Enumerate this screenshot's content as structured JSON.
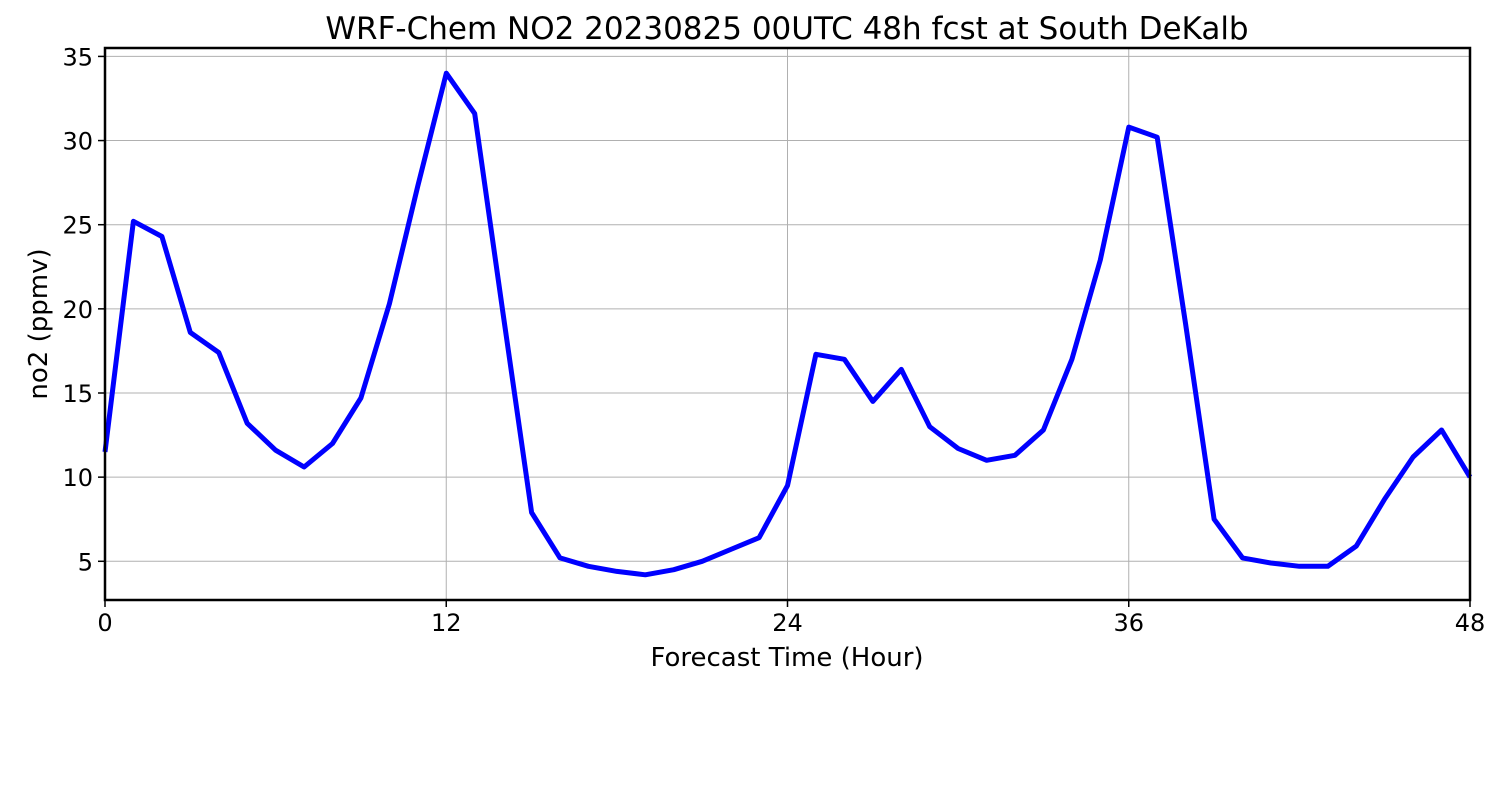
{
  "chart_data": {
    "type": "line",
    "title": "WRF-Chem NO2  20230825 00UTC 48h fcst at South DeKalb",
    "xlabel": "Forecast Time (Hour)",
    "ylabel": "no2  (ppmv)",
    "xlim": [
      0,
      48
    ],
    "ylim": [
      2.7,
      35.5
    ],
    "xticks": [
      0,
      12,
      24,
      36,
      48
    ],
    "yticks": [
      5,
      10,
      15,
      20,
      25,
      30,
      35
    ],
    "grid": true,
    "legend": "none",
    "series": [
      {
        "color": "#0000ff",
        "x": [
          0,
          1,
          2,
          3,
          4,
          5,
          6,
          7,
          8,
          9,
          10,
          11,
          12,
          13,
          14,
          15,
          16,
          17,
          18,
          19,
          20,
          21,
          22,
          23,
          24,
          25,
          26,
          27,
          28,
          29,
          30,
          31,
          32,
          33,
          34,
          35,
          36,
          37,
          38,
          39,
          40,
          41,
          42,
          43,
          44,
          45,
          46,
          47,
          48
        ],
        "y": [
          11.5,
          25.2,
          24.3,
          18.6,
          17.4,
          13.2,
          11.6,
          10.6,
          12.0,
          14.7,
          20.3,
          27.3,
          34.0,
          31.6,
          19.7,
          7.9,
          5.2,
          4.7,
          4.4,
          4.2,
          4.5,
          5.0,
          5.7,
          6.4,
          9.5,
          17.3,
          17.0,
          14.5,
          16.4,
          13.0,
          11.7,
          11.0,
          11.3,
          12.8,
          17.0,
          22.9,
          30.8,
          30.2,
          19.1,
          7.5,
          5.2,
          4.9,
          4.7,
          4.7,
          5.9,
          8.7,
          11.2,
          12.8,
          10.0
        ]
      }
    ]
  }
}
